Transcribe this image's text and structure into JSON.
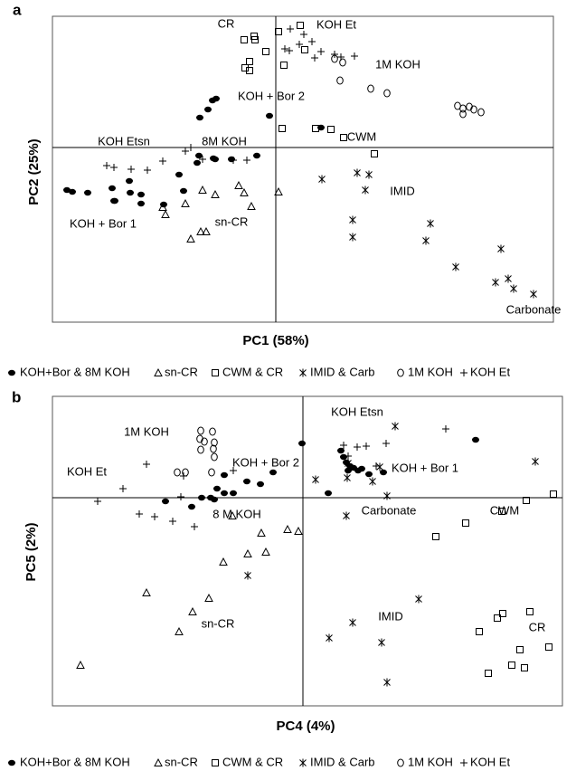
{
  "chart_data": [
    {
      "type": "scatter",
      "label": "a",
      "xlabel": "PC1 (58%)",
      "ylabel": "PC2 (25%)",
      "xlim": [
        -24.7,
        30.7
      ],
      "ylim": [
        -19.3,
        14.5
      ],
      "annotations": [
        "CR",
        "KOH Et",
        "KOH + Bor 2",
        "1M KOH",
        "KOH Etsn",
        "8M KOH",
        "CWM",
        "IMID",
        "KOH + Bor 1",
        "sn-CR",
        "Carbonate"
      ],
      "series": [
        {
          "name": "KOH+Bor & 8M KOH",
          "color": "#000000",
          "marker": "filled-ellipse",
          "x": [
            -23.1,
            -22.5,
            -20.8,
            -18.1,
            -17.8,
            -16.1,
            -16.2,
            -14.9,
            -14.9,
            -12.4,
            -10.2,
            -10.7,
            -8.7,
            -8.4,
            -7.5,
            -7.0,
            -6.6,
            -0.7,
            5.0,
            -8.5,
            -6.9,
            -4.9,
            -2.1,
            -6.7,
            -17.9
          ],
          "values": [
            -4.7,
            -4.9,
            -5.0,
            -4.5,
            -5.9,
            -5.0,
            -3.7,
            -5.2,
            -6.2,
            -6.3,
            -4.8,
            -3.0,
            -1.7,
            3.3,
            4.2,
            5.2,
            5.4,
            3.5,
            2.2,
            -0.9,
            -1.2,
            -1.3,
            -0.9,
            -1.3,
            -5.9
          ]
        },
        {
          "name": "sn-CR",
          "color": "#000000",
          "marker": "triangle",
          "x": [
            -12.5,
            -12.2,
            -10.0,
            -8.1,
            -8.3,
            -7.7,
            -9.4,
            -6.7,
            -4.1,
            -3.5,
            -2.7,
            0.3
          ],
          "values": [
            -6.6,
            -7.4,
            -6.2,
            -4.7,
            -9.3,
            -9.3,
            -10.1,
            -5.2,
            -4.2,
            -5.0,
            -6.5,
            -4.9
          ]
        },
        {
          "name": "CWM & CR",
          "color": "#000000",
          "marker": "square",
          "x": [
            -3.5,
            -2.4,
            -2.3,
            0.3,
            -2.9,
            -2.9,
            -3.4,
            -1.1,
            0.9,
            3.2,
            2.7,
            0.7,
            4.4,
            6.1,
            7.5,
            10.9
          ],
          "values": [
            11.9,
            12.3,
            11.9,
            12.8,
            9.5,
            8.5,
            8.8,
            10.6,
            9.1,
            10.8,
            13.5,
            2.1,
            2.1,
            2.0,
            1.1,
            -0.7
          ]
        },
        {
          "name": "IMID & Carb",
          "color": "#000000",
          "marker": "asterisk",
          "x": [
            5.1,
            9.0,
            10.3,
            9.9,
            8.5,
            8.5,
            17.1,
            16.6,
            19.9,
            24.9,
            24.3,
            25.7,
            26.3,
            28.5
          ],
          "values": [
            -3.5,
            -2.8,
            -3.0,
            -4.7,
            -8.0,
            -9.9,
            -8.4,
            -10.3,
            -13.2,
            -11.2,
            -14.9,
            -14.5,
            -15.6,
            -16.2
          ]
        },
        {
          "name": "1M KOH",
          "color": "#000000",
          "marker": "open-ellipse",
          "x": [
            6.5,
            7.4,
            7.1,
            10.5,
            12.3,
            20.1,
            20.7,
            21.4,
            21.9,
            22.7,
            20.7
          ],
          "values": [
            9.8,
            9.4,
            7.4,
            6.5,
            6.0,
            4.6,
            3.7,
            4.5,
            4.2,
            3.9,
            4.3
          ]
        },
        {
          "name": "KOH Et",
          "color": "#000000",
          "marker": "plus",
          "x": [
            1.6,
            3.1,
            4.0,
            2.6,
            1.5,
            1.0,
            4.3,
            5.0,
            6.5,
            7.2,
            8.7,
            -18.7,
            -17.9,
            -16.0,
            -14.2,
            -12.5,
            -10.0,
            -9.4,
            -8.1,
            -4.7,
            -3.2
          ],
          "values": [
            13.1,
            12.5,
            11.7,
            11.4,
            10.7,
            10.9,
            9.9,
            10.6,
            10.3,
            10.0,
            10.1,
            -2.0,
            -2.2,
            -2.4,
            -2.5,
            -1.5,
            -0.4,
            0,
            -1.3,
            -1.4,
            -1.4
          ]
        }
      ]
    },
    {
      "type": "scatter",
      "label": "b",
      "xlabel": "PC4 (4%)",
      "ylabel": "PC5 (2%)",
      "xlim": [
        -27.7,
        28.7
      ],
      "ylim": [
        -23,
        11.2
      ],
      "annotations": [
        "KOH Etsn",
        "1M KOH",
        "KOH + Bor 2",
        "KOH + Bor 1",
        "KOH Et",
        "8 M KOH",
        "Carbonate",
        "CWM",
        "sn-CR",
        "IMID",
        "CR"
      ],
      "series": [
        {
          "name": "KOH+Bor & 8M KOH",
          "color": "#000000",
          "marker": "filled-ellipse",
          "x": [
            19.1,
            -0.1,
            4.2,
            4.5,
            4.8,
            5.2,
            5.0,
            5.6,
            6.1,
            6.5,
            7.3,
            8.9,
            2.8,
            -3.3,
            -4.7,
            -6.2,
            -7.7,
            -8.7,
            -9.5,
            -9.8,
            -10.2,
            -11.2,
            -12.3,
            -15.2,
            -8.7
          ],
          "values": [
            6.4,
            6.0,
            5.2,
            4.5,
            3.9,
            3.5,
            3.0,
            3.3,
            3.0,
            3.2,
            2.6,
            2.8,
            0.5,
            2.8,
            1.5,
            1.8,
            0.5,
            0.5,
            1.0,
            -0.2,
            0,
            0,
            -1.0,
            -0.4,
            2.5
          ]
        },
        {
          "name": "sn-CR",
          "color": "#000000",
          "marker": "triangle",
          "x": [
            -24.6,
            -17.3,
            -10.4,
            -12.2,
            -13.7,
            -8.8,
            -6.1,
            -4.1,
            -1.7,
            -0.5,
            -4.6,
            -7.8
          ],
          "values": [
            -18.5,
            -10.5,
            -11.1,
            -12.6,
            -14.8,
            -7.1,
            -6.2,
            -6.0,
            -3.5,
            -3.7,
            -3.9,
            -2.0
          ]
        },
        {
          "name": "CWM & CR",
          "color": "#000000",
          "marker": "square",
          "x": [
            27.7,
            24.7,
            22.0,
            18.0,
            14.7,
            25.1,
            22.1,
            21.5,
            19.5,
            24.0,
            23.1,
            24.5,
            27.2,
            20.5
          ],
          "values": [
            0.4,
            -0.3,
            -1.5,
            -2.8,
            -4.3,
            -12.6,
            -12.8,
            -13.3,
            -14.8,
            -16.8,
            -18.5,
            -18.8,
            -16.5,
            -19.4
          ]
        },
        {
          "name": "IMID & Carb",
          "color": "#000000",
          "marker": "asterisk",
          "x": [
            10.2,
            1.4,
            5.0,
            4.9,
            7.7,
            9.3,
            4.8,
            25.7,
            12.8,
            5.5,
            2.9,
            8.7,
            9.3,
            8.5,
            -6.1
          ],
          "values": [
            7.9,
            2.0,
            3.8,
            2.2,
            1.8,
            0.2,
            -2.0,
            4.0,
            -11.2,
            -13.8,
            -15.5,
            -16.0,
            -20.4,
            3.4,
            -8.6
          ]
        },
        {
          "name": "1M KOH",
          "color": "#000000",
          "marker": "open-ellipse",
          "x": [
            -11.3,
            -10.0,
            -11.4,
            -9.8,
            -9.9,
            -11.3,
            -13.9,
            -13.0,
            -10.1,
            -9.8,
            -10.9
          ],
          "values": [
            7.4,
            7.3,
            6.5,
            6.1,
            5.4,
            5.3,
            2.8,
            2.8,
            2.8,
            4.5,
            6.2
          ]
        },
        {
          "name": "KOH Et",
          "color": "#000000",
          "marker": "plus",
          "x": [
            -22.7,
            -19.9,
            -18.1,
            -16.4,
            -14.4,
            -13.5,
            -12.0,
            -7.7,
            -17.3,
            -13.2,
            4.5,
            6.0,
            7.0,
            9.2,
            5.0,
            8.1,
            15.8
          ],
          "values": [
            -0.4,
            1.0,
            -1.8,
            -2.1,
            -2.6,
            0.1,
            -3.2,
            3.0,
            3.7,
            2.4,
            5.8,
            5.6,
            5.7,
            6.0,
            4.6,
            3.5,
            7.6
          ]
        }
      ]
    }
  ]
}
